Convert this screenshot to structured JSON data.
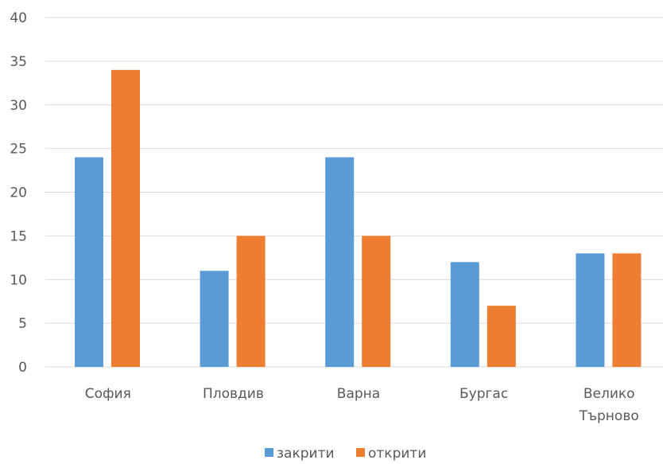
{
  "chart_data": {
    "type": "bar",
    "categories": [
      "София",
      "Пловдив",
      "Варна",
      "Бургас",
      "Велико Търново"
    ],
    "series": [
      {
        "name": "закрити",
        "values": [
          24,
          11,
          24,
          12,
          13
        ],
        "color": "#5B9BD5"
      },
      {
        "name": "открити",
        "values": [
          34,
          15,
          15,
          7,
          13
        ],
        "color": "#ED7D31"
      }
    ],
    "yticks": [
      "0",
      "5",
      "10",
      "15",
      "20",
      "25",
      "30",
      "35",
      "40"
    ],
    "ylim": [
      0,
      40
    ],
    "grid": true,
    "legend_position": "bottom",
    "gridline_color": "#D9D9D9"
  }
}
